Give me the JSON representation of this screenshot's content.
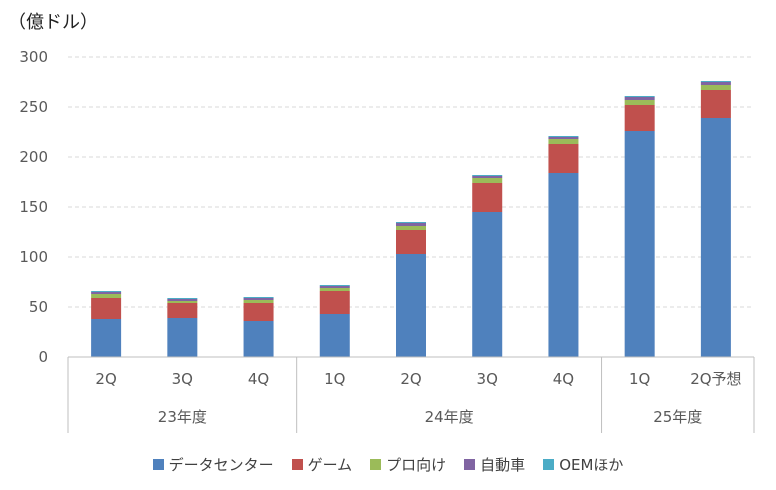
{
  "chart_data": {
    "type": "bar",
    "stacked": true,
    "unit_label": "（億ドル）",
    "categories": [
      "2Q",
      "3Q",
      "4Q",
      "1Q",
      "2Q",
      "3Q",
      "4Q",
      "1Q",
      "2Q予想"
    ],
    "groups": [
      {
        "label": "23年度",
        "count": 3
      },
      {
        "label": "24年度",
        "count": 4
      },
      {
        "label": "25年度",
        "count": 2
      }
    ],
    "ylim": [
      0,
      300
    ],
    "yticks": [
      0,
      50,
      100,
      150,
      200,
      250,
      300
    ],
    "grid": true,
    "legend_position": "bottom",
    "series": [
      {
        "name": "データセンター",
        "color": "#4F81BD",
        "values": [
          38,
          39,
          36,
          43,
          103,
          145,
          184,
          226,
          239
        ]
      },
      {
        "name": "ゲーム",
        "color": "#C0504D",
        "values": [
          21,
          15,
          18,
          23,
          24,
          29,
          29,
          26,
          28
        ]
      },
      {
        "name": "プロ向け",
        "color": "#9BBB59",
        "values": [
          4,
          2,
          3,
          3,
          4,
          5,
          5,
          5,
          5
        ]
      },
      {
        "name": "自動車",
        "color": "#8064A2",
        "values": [
          2,
          2,
          2,
          2,
          3,
          2,
          2,
          3,
          3
        ]
      },
      {
        "name": "OEMほか",
        "color": "#4BACC6",
        "values": [
          1,
          1,
          1,
          1,
          1,
          1,
          1,
          1,
          1
        ]
      }
    ]
  }
}
